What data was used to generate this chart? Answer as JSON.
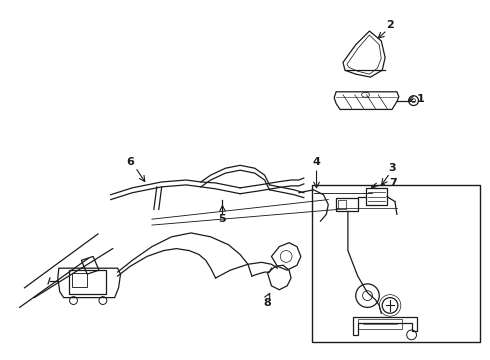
{
  "background_color": "#ffffff",
  "line_color": "#1a1a1a",
  "fig_width": 4.9,
  "fig_height": 3.6,
  "dpi": 100,
  "font_size": 8
}
